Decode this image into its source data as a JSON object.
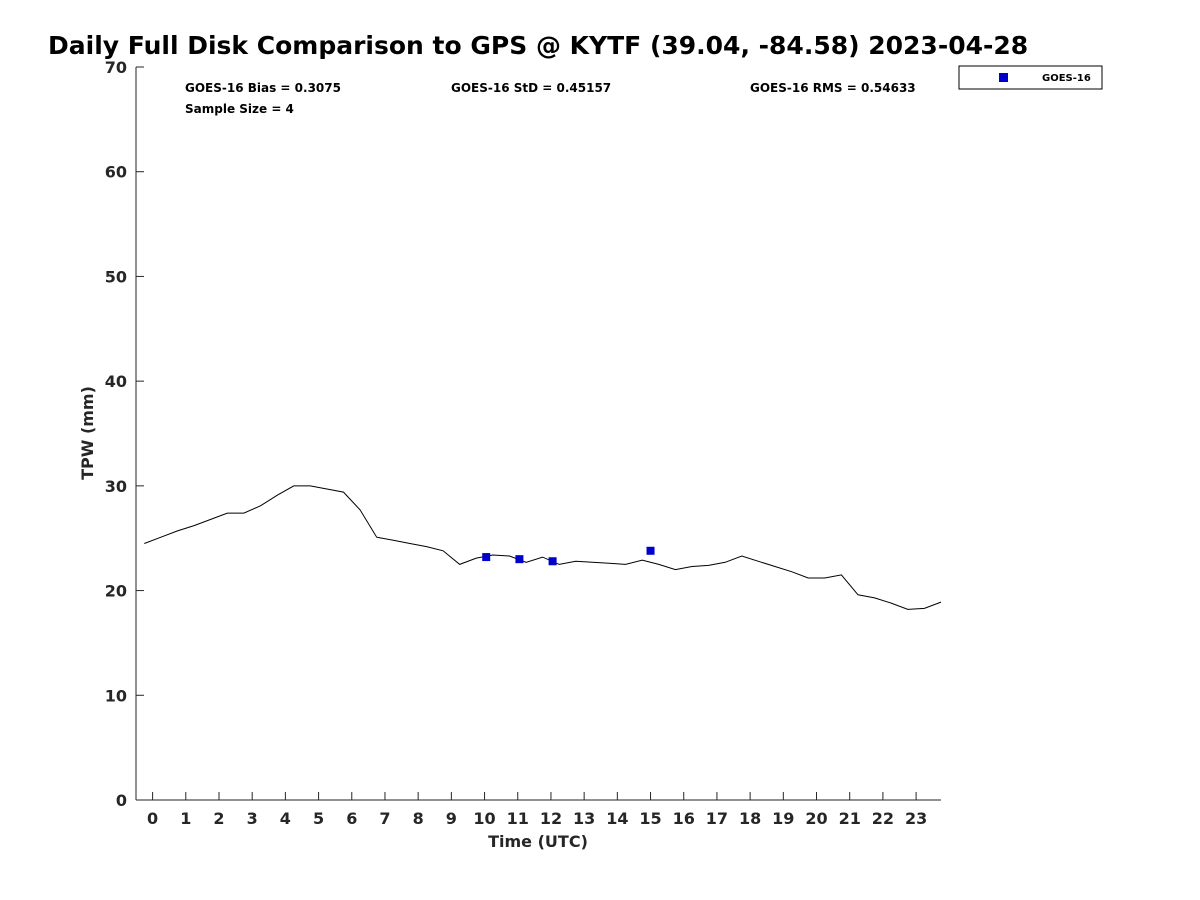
{
  "chart_data": {
    "type": "line",
    "title": "Daily Full Disk Comparison to GPS @ KYTF (39.04, -84.58) 2023-04-28",
    "xlabel": "Time (UTC)",
    "ylabel": "TPW (mm)",
    "xlim": [
      -0.5,
      23.75
    ],
    "ylim": [
      0,
      70
    ],
    "x_ticks": [
      0,
      1,
      2,
      3,
      4,
      5,
      6,
      7,
      8,
      9,
      10,
      11,
      12,
      13,
      14,
      15,
      16,
      17,
      18,
      19,
      20,
      21,
      22,
      23
    ],
    "y_ticks": [
      0,
      10,
      20,
      30,
      40,
      50,
      60,
      70
    ],
    "grid": false,
    "legend_position": "top-right-outside",
    "stats": {
      "bias": "GOES-16 Bias = 0.3075",
      "std": "GOES-16 StD = 0.45157",
      "rms": "GOES-16 RMS = 0.54633",
      "sample": "Sample Size = 4"
    },
    "series": [
      {
        "style": "line",
        "color": "#000000",
        "x": [
          -0.25,
          0.25,
          0.75,
          1.25,
          1.75,
          2.25,
          2.75,
          3.25,
          3.75,
          4.25,
          4.75,
          5.25,
          5.75,
          6.25,
          6.75,
          7.25,
          7.75,
          8.25,
          8.75,
          9.25,
          9.75,
          10.25,
          10.75,
          11.25,
          11.75,
          12.25,
          12.75,
          13.25,
          13.75,
          14.25,
          14.75,
          15.25,
          15.75,
          16.25,
          16.75,
          17.25,
          17.75,
          18.25,
          18.75,
          19.25,
          19.75,
          20.25,
          20.75,
          21.25,
          21.75,
          22.25,
          22.75,
          23.25,
          23.75
        ],
        "y": [
          24.5,
          25.1,
          25.7,
          26.2,
          26.8,
          27.4,
          27.4,
          28.1,
          29.1,
          30.0,
          30.0,
          29.7,
          29.4,
          27.7,
          25.1,
          24.8,
          24.5,
          24.2,
          23.8,
          22.5,
          23.1,
          23.4,
          23.3,
          22.7,
          23.2,
          22.5,
          22.8,
          22.7,
          22.6,
          22.5,
          22.9,
          22.5,
          22.0,
          22.3,
          22.4,
          22.7,
          23.3,
          22.8,
          22.3,
          21.8,
          21.2,
          21.2,
          21.5,
          19.6,
          19.3,
          18.8,
          18.2,
          18.3,
          18.9
        ]
      },
      {
        "name": "GOES-16",
        "style": "scatter",
        "color": "#0000cc",
        "marker": "square",
        "x": [
          10.05,
          11.05,
          12.05,
          15.0
        ],
        "y": [
          23.2,
          23.0,
          22.8,
          23.8
        ]
      }
    ]
  }
}
